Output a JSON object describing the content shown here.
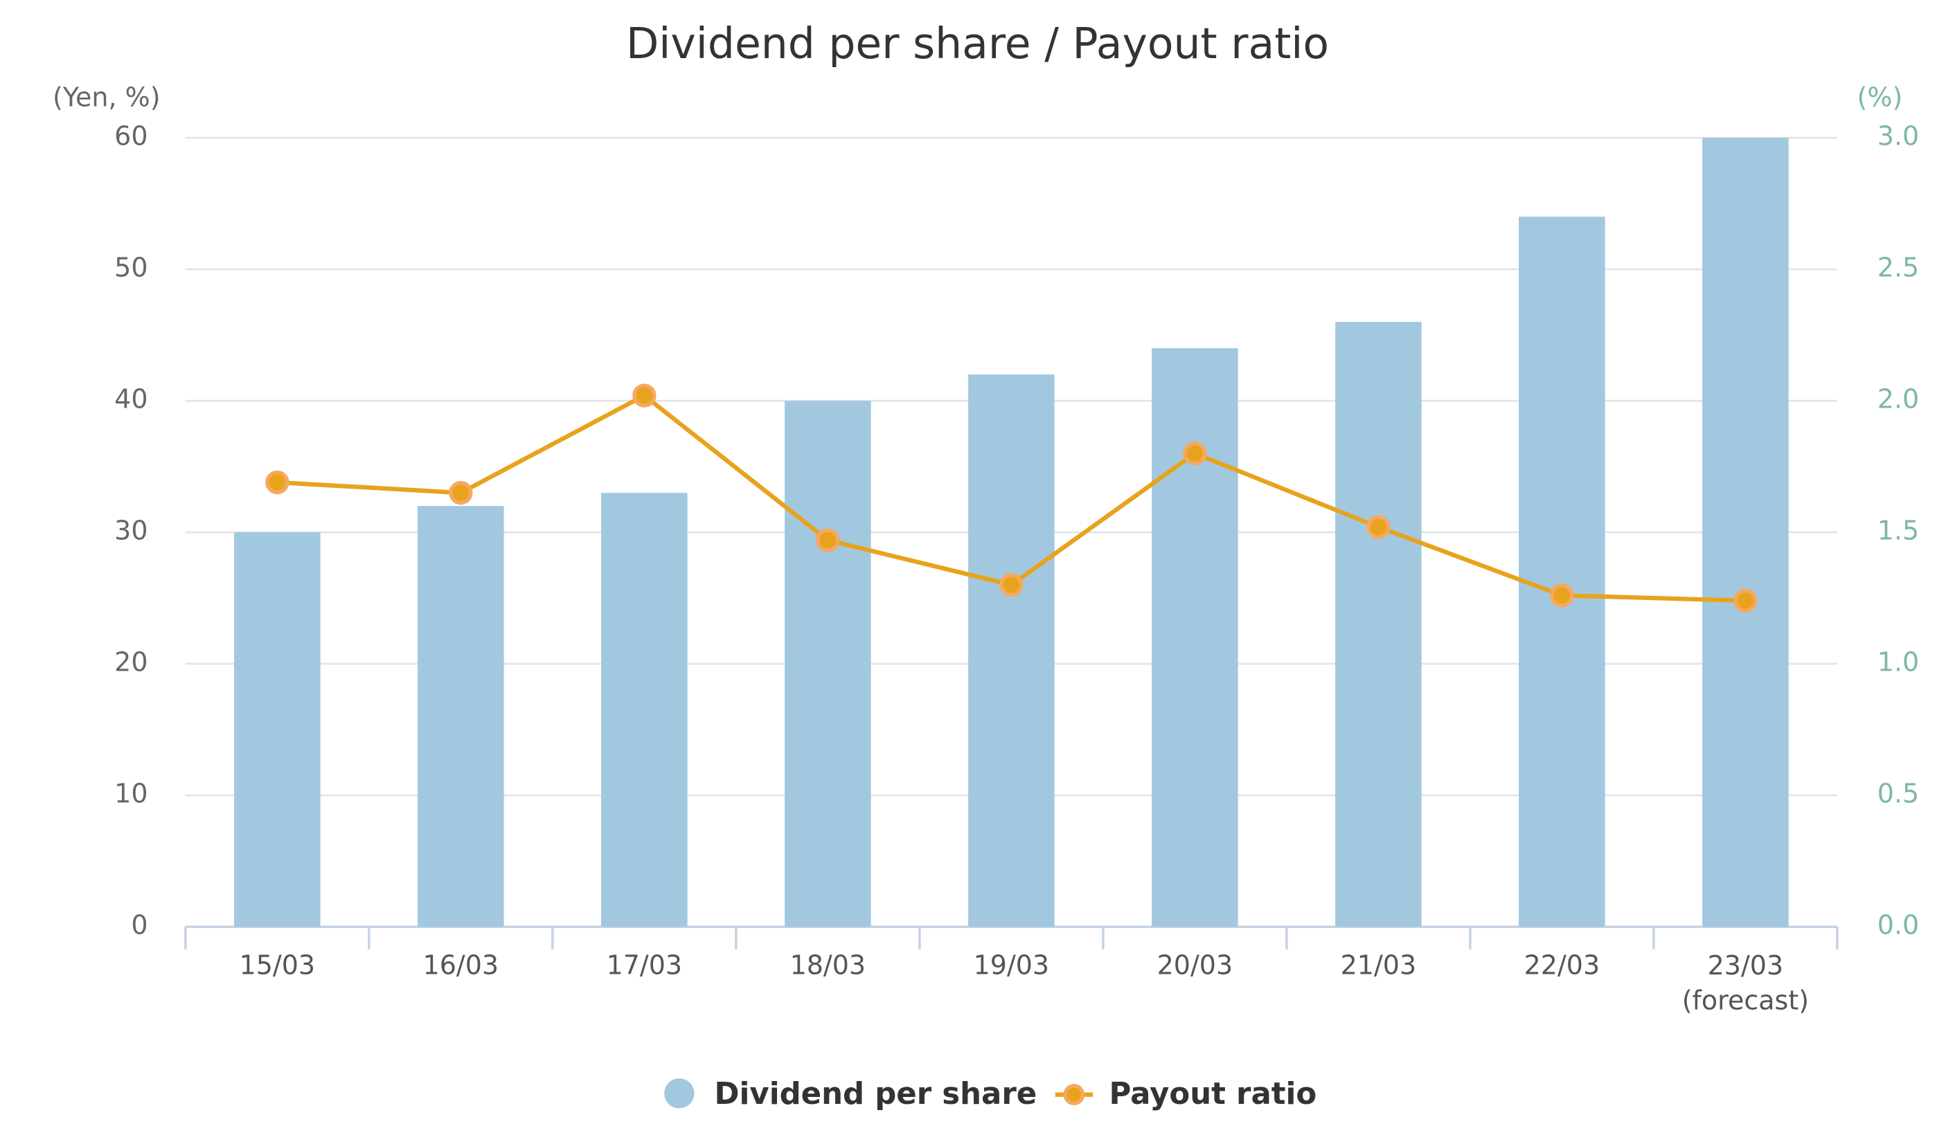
{
  "chart_data": {
    "type": "bar",
    "title": "Dividend per share / Payout ratio",
    "y_label": "(Yen, %)",
    "y2_label": "(%)",
    "categories": [
      "15/03",
      "16/03",
      "17/03",
      "18/03",
      "19/03",
      "20/03",
      "21/03",
      "22/03",
      "23/03\n(forecast)"
    ],
    "series": [
      {
        "name": "Dividend per share",
        "type": "bar",
        "color": "#a2c8e0",
        "values": [
          30,
          32,
          33,
          40,
          42,
          44,
          46,
          54,
          60
        ]
      },
      {
        "name": "Payout ratio",
        "type": "line",
        "axis": "y2",
        "color": "#e8a31c",
        "values": [
          1.69,
          1.65,
          2.02,
          1.47,
          1.3,
          1.8,
          1.52,
          1.26,
          1.24
        ]
      }
    ],
    "ylim": [
      0,
      60
    ],
    "yticks": [
      0,
      10,
      20,
      30,
      40,
      50,
      60
    ],
    "y2lim": [
      0,
      3
    ],
    "y2ticks": [
      {
        "value": 0,
        "label": "0.0"
      },
      0.5,
      {
        "value": 1,
        "label": "1.0"
      },
      1.5,
      {
        "value": 2,
        "label": "2.0"
      },
      2.5,
      {
        "value": 3,
        "label": "3.0"
      }
    ],
    "grid": true,
    "legend": "bottom"
  }
}
